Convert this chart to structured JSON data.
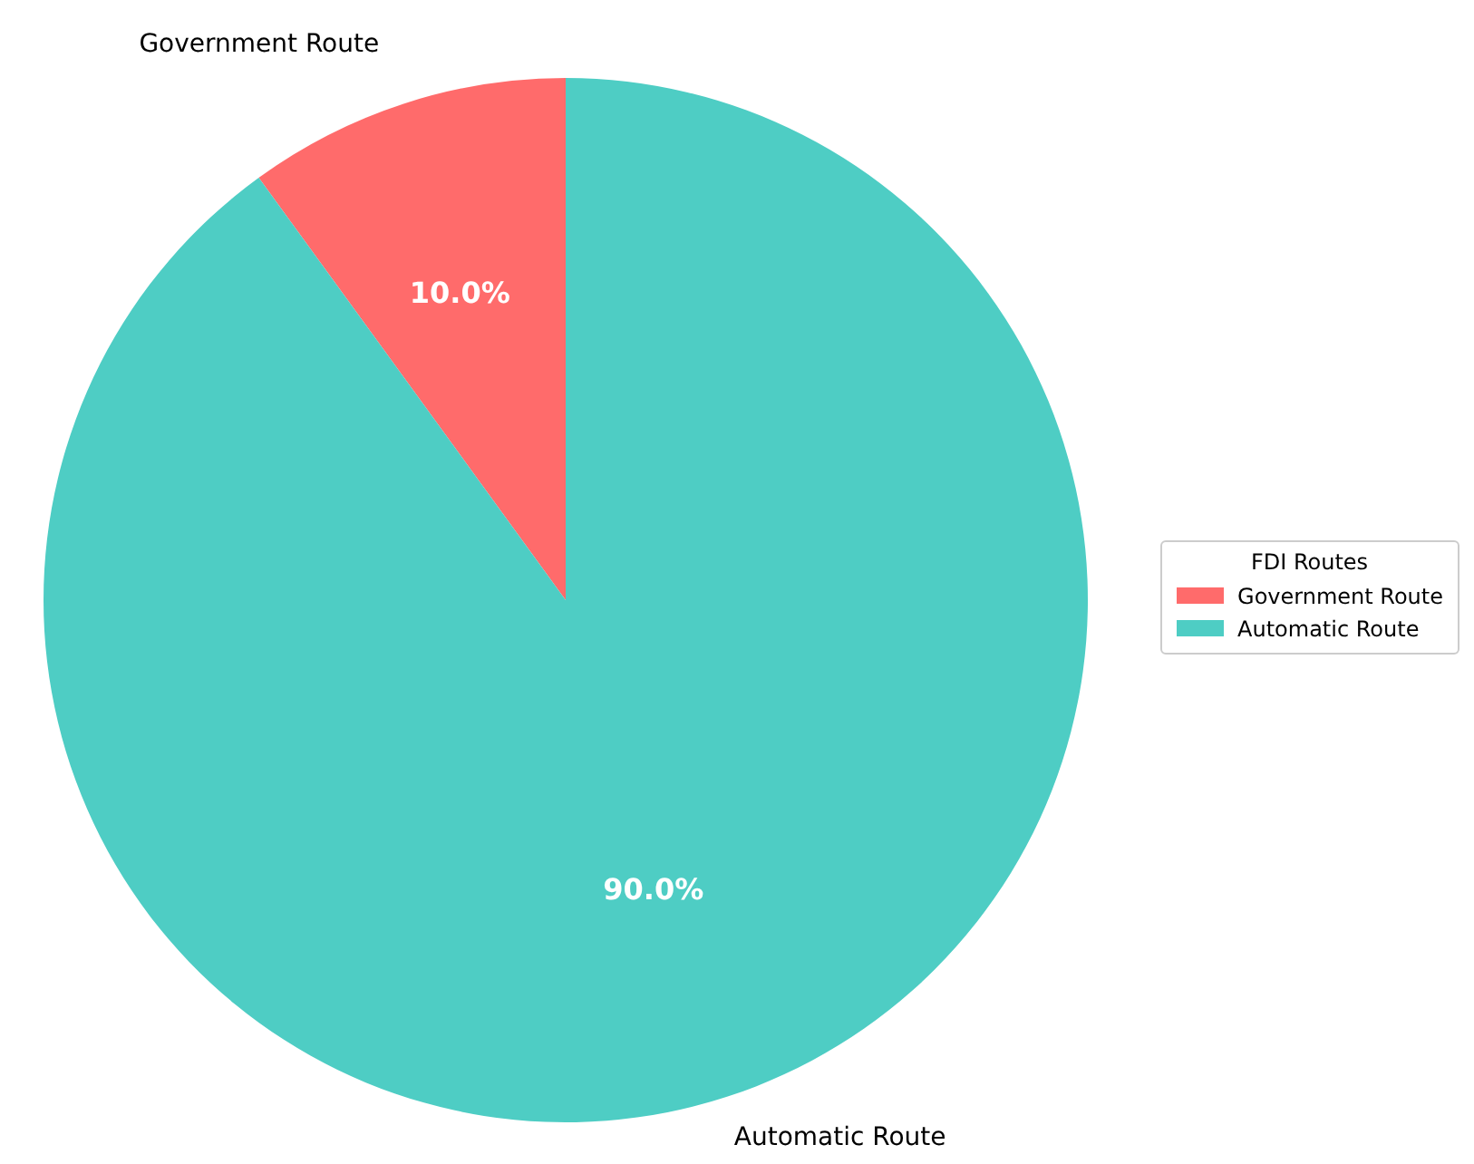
{
  "chart_data": {
    "type": "pie",
    "legend_title": "FDI Routes",
    "legend": "right",
    "categories": [
      "Government Route",
      "Automatic Route"
    ],
    "values": [
      10,
      90
    ],
    "colors": [
      "#ff6b6b",
      "#4ecdc4"
    ],
    "value_labels": [
      "10.0%",
      "90.0%"
    ]
  }
}
